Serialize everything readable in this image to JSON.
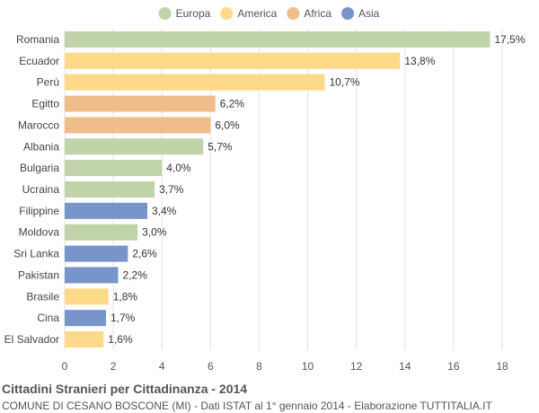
{
  "chart_data": {
    "type": "bar",
    "orientation": "horizontal",
    "title": "Cittadini Stranieri per Cittadinanza - 2014",
    "subtitle": "COMUNE DI CESANO BOSCONE (MI) - Dati ISTAT al 1° gennaio 2014 - Elaborazione TUTTITALIA.IT",
    "xlim": [
      0,
      18
    ],
    "xticks": [
      0,
      2,
      4,
      6,
      8,
      10,
      12,
      14,
      16,
      18
    ],
    "grid": true,
    "legend_position": "top",
    "legend": [
      {
        "name": "Europa",
        "color": "#c1d3a8"
      },
      {
        "name": "America",
        "color": "#ffd98a"
      },
      {
        "name": "Africa",
        "color": "#f0bd8a"
      },
      {
        "name": "Asia",
        "color": "#7895cb"
      }
    ],
    "bars": [
      {
        "category": "Romania",
        "value": 17.5,
        "label": "17,5%",
        "group": "Europa"
      },
      {
        "category": "Ecuador",
        "value": 13.8,
        "label": "13,8%",
        "group": "America"
      },
      {
        "category": "Perù",
        "value": 10.7,
        "label": "10,7%",
        "group": "America"
      },
      {
        "category": "Egitto",
        "value": 6.2,
        "label": "6,2%",
        "group": "Africa"
      },
      {
        "category": "Marocco",
        "value": 6.0,
        "label": "6,0%",
        "group": "Africa"
      },
      {
        "category": "Albania",
        "value": 5.7,
        "label": "5,7%",
        "group": "Europa"
      },
      {
        "category": "Bulgaria",
        "value": 4.0,
        "label": "4,0%",
        "group": "Europa"
      },
      {
        "category": "Ucraina",
        "value": 3.7,
        "label": "3,7%",
        "group": "Europa"
      },
      {
        "category": "Filippine",
        "value": 3.4,
        "label": "3,4%",
        "group": "Asia"
      },
      {
        "category": "Moldova",
        "value": 3.0,
        "label": "3,0%",
        "group": "Europa"
      },
      {
        "category": "Sri Lanka",
        "value": 2.6,
        "label": "2,6%",
        "group": "Asia"
      },
      {
        "category": "Pakistan",
        "value": 2.2,
        "label": "2,2%",
        "group": "Asia"
      },
      {
        "category": "Brasile",
        "value": 1.8,
        "label": "1,8%",
        "group": "America"
      },
      {
        "category": "Cina",
        "value": 1.7,
        "label": "1,7%",
        "group": "Asia"
      },
      {
        "category": "El Salvador",
        "value": 1.6,
        "label": "1,6%",
        "group": "America"
      }
    ]
  }
}
